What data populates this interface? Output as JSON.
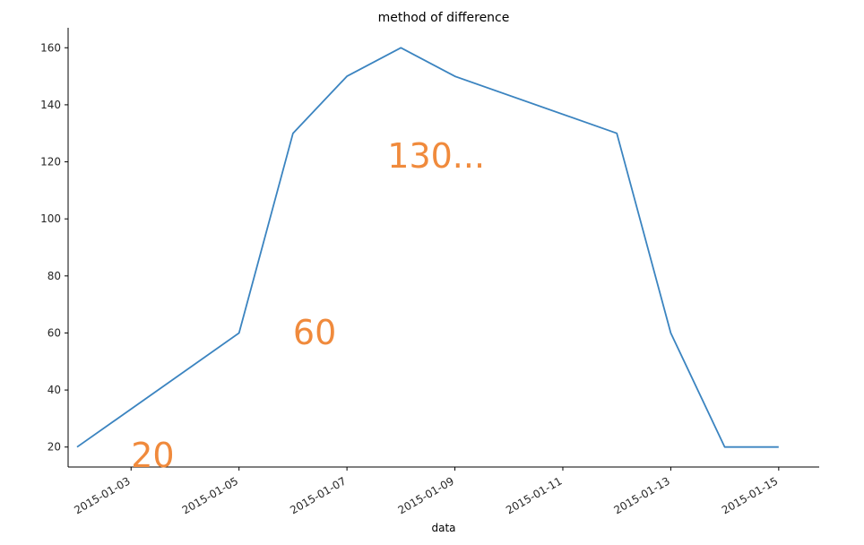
{
  "chart_data": {
    "type": "line",
    "title": "method of difference",
    "xlabel": "data",
    "ylabel": "",
    "x": [
      "2015-01-02",
      "2015-01-05",
      "2015-01-06",
      "2015-01-07",
      "2015-01-08",
      "2015-01-09",
      "2015-01-12",
      "2015-01-13",
      "2015-01-14",
      "2015-01-15"
    ],
    "series": [
      {
        "values": [
          20,
          60,
          130,
          150,
          160,
          150,
          130,
          60,
          20,
          20
        ],
        "color": "#3b84c0"
      }
    ],
    "xlim": [
      "2015-01-01T20:00",
      "2015-01-15T18:00"
    ],
    "ylim": [
      13,
      167
    ],
    "xticks": [
      "2015-01-03",
      "2015-01-05",
      "2015-01-07",
      "2015-01-09",
      "2015-01-11",
      "2015-01-13",
      "2015-01-15"
    ],
    "yticks": [
      20,
      40,
      60,
      80,
      100,
      120,
      140,
      160
    ],
    "grid": false,
    "annotations": [
      {
        "text": "20",
        "x": "2015-01-03",
        "y": 13,
        "color": "#f08a3c"
      },
      {
        "text": "60",
        "x": "2015-01-06",
        "y": 56,
        "color": "#f08a3c"
      },
      {
        "text": "130...",
        "x": "2015-01-07T18:00",
        "y": 118,
        "color": "#f08a3c"
      }
    ]
  }
}
